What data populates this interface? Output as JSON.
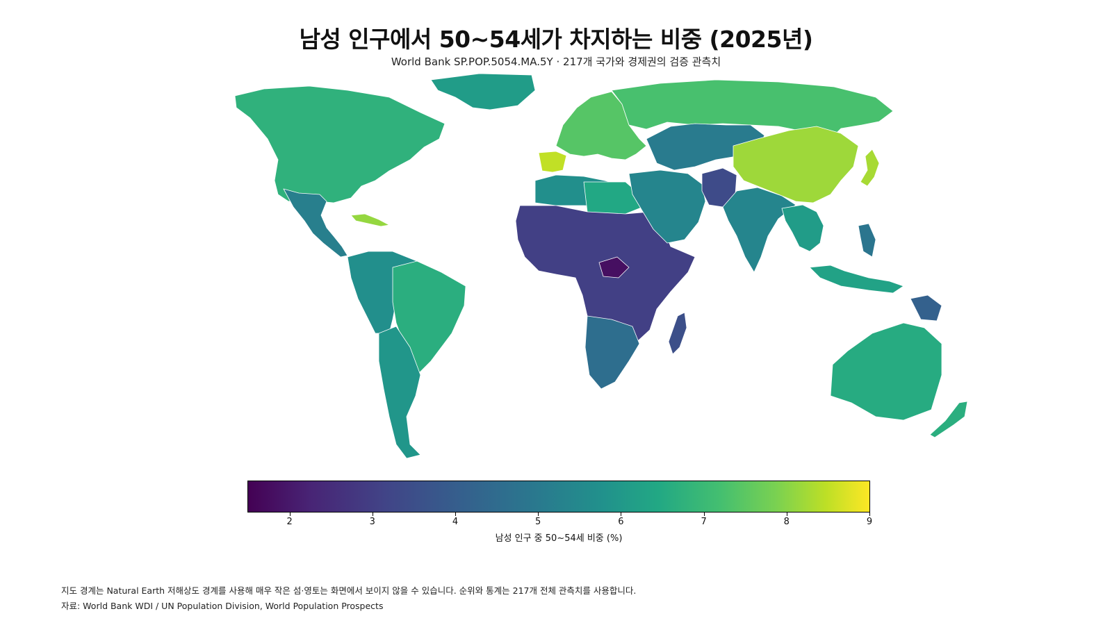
{
  "header": {
    "title": "남성 인구에서 50~54세가 차지하는 비중 (2025년)",
    "subtitle": "World Bank SP.POP.5054.MA.5Y · 217개 국가와 경제권의 검증 관측치"
  },
  "legend": {
    "label": "남성 인구 중 50~54세 비중 (%)",
    "range": [
      1.5,
      9
    ],
    "ticks": [
      "2",
      "3",
      "4",
      "5",
      "6",
      "7",
      "8",
      "9"
    ],
    "colormap": "viridis"
  },
  "footer": {
    "note": "지도 경계는 Natural Earth 저해상도 경계를 사용해 매우 작은 섬·영토는 화면에서 보이지 않을 수 있습니다. 순위와 통계는 217개 전체 관측치를 사용합니다.",
    "source": "자료: World Bank WDI / UN Population Division, World Population Prospects"
  },
  "map": {
    "regions": [
      {
        "id": "north-america",
        "value": 6.3
      },
      {
        "id": "greenland",
        "value": 5.6
      },
      {
        "id": "mexico-central-america",
        "value": 4.7
      },
      {
        "id": "cuba-caribbean",
        "value": 7.8
      },
      {
        "id": "south-america",
        "value": 5.2
      },
      {
        "id": "brazil",
        "value": 6.2
      },
      {
        "id": "chile-argentina",
        "value": 5.4
      },
      {
        "id": "europe",
        "value": 7.0
      },
      {
        "id": "iberia",
        "value": 8.3
      },
      {
        "id": "russia",
        "value": 6.8
      },
      {
        "id": "north-africa",
        "value": 5.2
      },
      {
        "id": "sahara-africa",
        "value": 6.0
      },
      {
        "id": "sub-saharan-africa",
        "value": 2.9
      },
      {
        "id": "central-african-republic",
        "value": 1.8
      },
      {
        "id": "southern-africa",
        "value": 4.2
      },
      {
        "id": "madagascar",
        "value": 3.3
      },
      {
        "id": "middle-east",
        "value": 4.9
      },
      {
        "id": "central-asia",
        "value": 4.6
      },
      {
        "id": "pakistan-afghanistan",
        "value": 3.2
      },
      {
        "id": "india",
        "value": 4.9
      },
      {
        "id": "china",
        "value": 7.9
      },
      {
        "id": "japan",
        "value": 8.0
      },
      {
        "id": "southeast-asia",
        "value": 5.6
      },
      {
        "id": "indonesia",
        "value": 5.8
      },
      {
        "id": "philippines",
        "value": 4.4
      },
      {
        "id": "papua-new-guinea",
        "value": 3.8
      },
      {
        "id": "australia",
        "value": 6.1
      },
      {
        "id": "new-zealand",
        "value": 6.2
      }
    ]
  }
}
